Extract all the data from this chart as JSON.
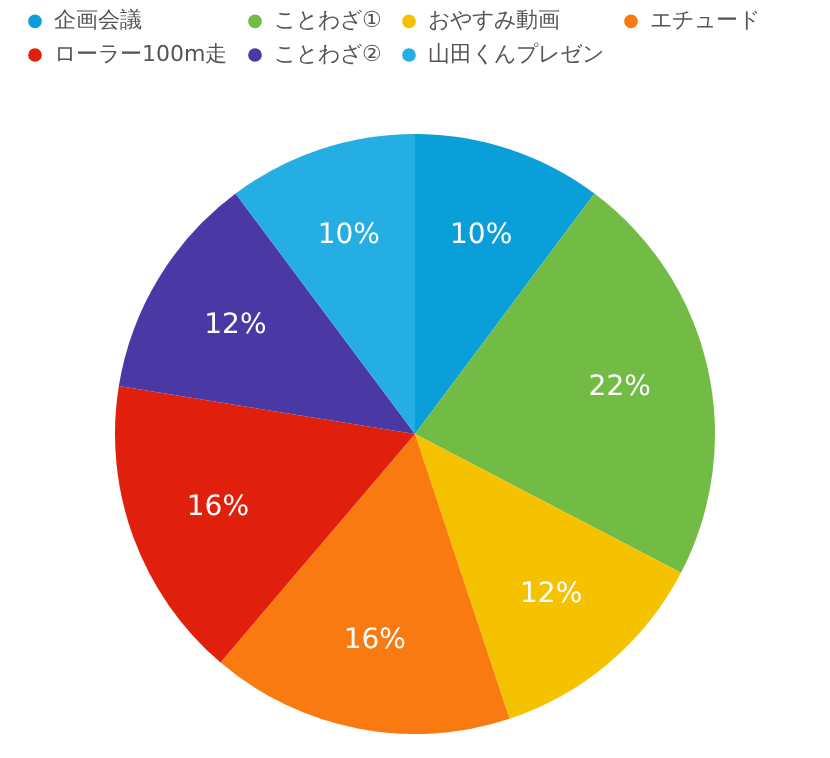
{
  "chart_data": {
    "type": "pie",
    "categories": [
      "企画会議",
      "ことわざ①",
      "おやすみ動画",
      "エチュード",
      "ローラー100m走",
      "ことわざ②",
      "山田くんプレゼン"
    ],
    "values": [
      10,
      22,
      12,
      16,
      16,
      12,
      10
    ],
    "value_labels": [
      "10%",
      "22%",
      "12%",
      "16%",
      "16%",
      "12%",
      "10%"
    ],
    "colors": [
      "#0a9fd8",
      "#72bb44",
      "#f5c200",
      "#f97a10",
      "#e0200c",
      "#4a38a4",
      "#25aee3"
    ],
    "legend": "top"
  }
}
